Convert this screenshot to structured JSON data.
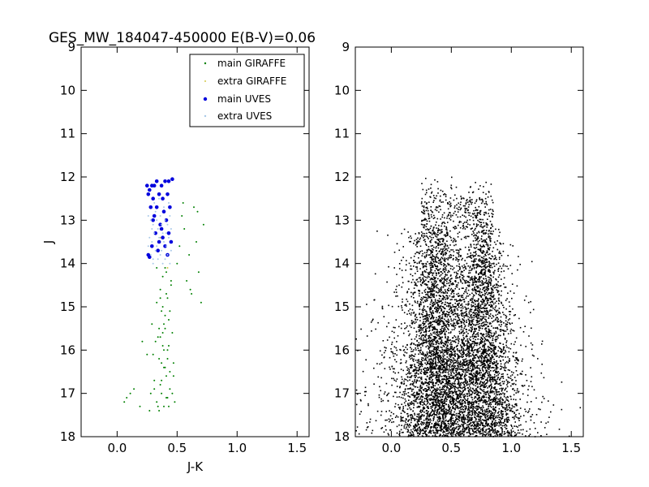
{
  "title": "GES_MW_184047-450000 E(B-V)=0.06",
  "chart_data": [
    {
      "type": "scatter",
      "xlabel": "J-K",
      "ylabel": "J",
      "xlim": [
        -0.3,
        1.6
      ],
      "ylim": [
        18,
        9
      ],
      "xticks": [
        "0.0",
        "0.5",
        "1.0",
        "1.5"
      ],
      "xtick_values": [
        0.0,
        0.5,
        1.0,
        1.5
      ],
      "yticks": [
        "9",
        "10",
        "11",
        "12",
        "13",
        "14",
        "15",
        "16",
        "17",
        "18"
      ],
      "ytick_values": [
        9,
        10,
        11,
        12,
        13,
        14,
        15,
        16,
        17,
        18
      ],
      "legend_position": "top-right",
      "series": [
        {
          "name": "main GIRAFFE",
          "color": "#008000",
          "marker": "dot",
          "x": [
            0.06,
            0.08,
            0.11,
            0.14,
            0.19,
            0.21,
            0.25,
            0.27,
            0.29,
            0.31,
            0.33,
            0.33,
            0.34,
            0.35,
            0.36,
            0.36,
            0.37,
            0.37,
            0.38,
            0.38,
            0.39,
            0.39,
            0.4,
            0.4,
            0.41,
            0.41,
            0.42,
            0.42,
            0.43,
            0.44,
            0.45,
            0.46,
            0.47,
            0.48,
            0.5,
            0.52,
            0.54,
            0.56,
            0.58,
            0.6,
            0.62,
            0.64,
            0.66,
            0.68,
            0.7,
            0.72,
            0.55,
            0.61,
            0.67,
            0.4,
            0.36,
            0.44,
            0.3,
            0.28,
            0.38,
            0.43,
            0.41,
            0.37,
            0.35,
            0.39,
            0.42,
            0.45,
            0.33,
            0.32,
            0.46,
            0.47,
            0.31,
            0.34,
            0.4,
            0.38,
            0.36,
            0.42,
            0.44,
            0.39,
            0.41,
            0.37,
            0.35,
            0.43
          ],
          "y": [
            17.2,
            17.1,
            17.0,
            16.9,
            17.3,
            15.8,
            16.1,
            17.4,
            15.4,
            16.7,
            14.9,
            17.2,
            15.7,
            16.2,
            14.6,
            16.8,
            15.1,
            17.0,
            14.3,
            15.9,
            16.4,
            17.3,
            14.1,
            15.5,
            16.6,
            17.1,
            14.8,
            16.0,
            15.3,
            16.9,
            14.5,
            15.6,
            16.3,
            17.2,
            14.0,
            13.6,
            12.9,
            13.2,
            14.4,
            13.8,
            14.7,
            12.7,
            13.5,
            14.2,
            14.9,
            13.1,
            12.6,
            14.6,
            12.8,
            15.2,
            15.7,
            16.5,
            16.1,
            17.0,
            15.0,
            15.9,
            14.2,
            16.7,
            17.4,
            15.4,
            16.2,
            14.4,
            14.1,
            15.8,
            17.0,
            16.6,
            16.9,
            17.3,
            16.4,
            15.6,
            14.8,
            17.1,
            15.1,
            16.0,
            14.7,
            16.3,
            15.5,
            17.3
          ]
        },
        {
          "name": "extra GIRAFFE",
          "color": "#d4c94a",
          "marker": "dot",
          "x": [
            0.36,
            0.42
          ],
          "y": [
            13.4,
            14.1
          ]
        },
        {
          "name": "main UVES",
          "color": "#0000dd",
          "marker": "circle",
          "x": [
            0.25,
            0.27,
            0.29,
            0.31,
            0.33,
            0.37,
            0.4,
            0.43,
            0.46,
            0.26,
            0.3,
            0.35,
            0.38,
            0.42,
            0.28,
            0.33,
            0.39,
            0.44,
            0.3,
            0.36,
            0.41,
            0.32,
            0.38,
            0.43,
            0.29,
            0.35,
            0.4,
            0.26,
            0.34,
            0.42,
            0.31,
            0.37,
            0.45,
            0.27
          ],
          "y": [
            12.2,
            12.3,
            12.2,
            12.2,
            12.1,
            12.2,
            12.1,
            12.1,
            12.05,
            12.4,
            12.5,
            12.4,
            12.5,
            12.4,
            12.7,
            12.7,
            12.8,
            12.7,
            13.0,
            13.1,
            13.0,
            13.3,
            13.4,
            13.3,
            13.6,
            13.5,
            13.6,
            13.8,
            13.7,
            13.8,
            12.9,
            13.2,
            13.5,
            13.85
          ]
        },
        {
          "name": "extra UVES",
          "color": "#a8c8e8",
          "marker": "dot",
          "x": [
            0.26,
            0.28,
            0.3,
            0.32,
            0.34,
            0.36,
            0.38,
            0.4,
            0.42,
            0.44,
            0.27,
            0.29,
            0.31,
            0.33,
            0.35,
            0.37,
            0.39,
            0.41,
            0.43,
            0.45,
            0.28,
            0.3,
            0.32,
            0.34,
            0.36,
            0.38,
            0.4,
            0.42,
            0.44,
            0.26,
            0.31,
            0.35,
            0.39,
            0.43,
            0.29,
            0.33,
            0.37,
            0.41,
            0.45,
            0.3
          ],
          "y": [
            12.9,
            13.0,
            13.1,
            12.8,
            13.2,
            12.9,
            13.3,
            13.0,
            13.1,
            12.9,
            13.4,
            13.5,
            13.3,
            13.6,
            13.4,
            13.7,
            13.5,
            13.6,
            13.4,
            13.7,
            13.8,
            13.9,
            13.7,
            13.9,
            13.8,
            14.0,
            13.9,
            13.8,
            14.0,
            13.6,
            12.6,
            12.5,
            12.7,
            12.6,
            13.2,
            13.0,
            13.1,
            13.3,
            13.2,
            14.0
          ]
        }
      ]
    },
    {
      "type": "scatter",
      "xlabel": "",
      "ylabel": "",
      "xlim": [
        -0.3,
        1.6
      ],
      "ylim": [
        18,
        9
      ],
      "xticks": [
        "0.0",
        "0.5",
        "1.0",
        "1.5"
      ],
      "xtick_values": [
        0.0,
        0.5,
        1.0,
        1.5
      ],
      "yticks": [
        "9",
        "10",
        "11",
        "12",
        "13",
        "14",
        "15",
        "16",
        "17",
        "18"
      ],
      "ytick_values": [
        9,
        10,
        11,
        12,
        13,
        14,
        15,
        16,
        17,
        18
      ],
      "series": [
        {
          "color": "#000000",
          "marker": "dot",
          "distribution": {
            "count": 7000,
            "x_center": 0.5,
            "x_spread": 0.28,
            "y_top": 12.0,
            "y_bottom": 18.0,
            "ridges": [
              0.37,
              0.76
            ],
            "seed": 7
          }
        }
      ]
    }
  ]
}
